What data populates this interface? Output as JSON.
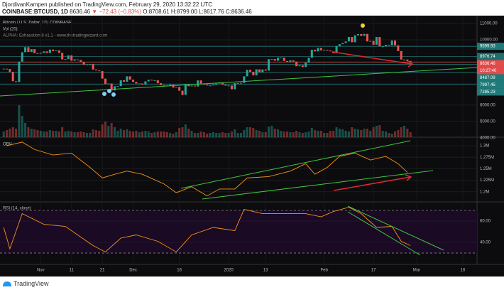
{
  "header": {
    "publisher": "DjordivanKampen published on TradingView.com, February 29, 2020 13:32:22 UTC",
    "symbol": "COINBASE:BTCUSD, 1D",
    "last": "8636.46",
    "change": "▼ −72.43 (−0.83%)",
    "ohlc": "O:8708.61 H:8799.00 L:8617.76 C:8636.46"
  },
  "chart_data": {
    "type": "candlestick",
    "title": "Bitcoin / U.S. Dollar, 1D, COINBASE",
    "indicator": "ALPHA: Exhaustion 8 v1.1 - www.thetradingwizard.com",
    "xlim": [
      -1.2,
      153.6
    ],
    "xticks": [
      {
        "value": 12,
        "label": "Nov"
      },
      {
        "value": 22,
        "label": "11"
      },
      {
        "value": 32,
        "label": "21"
      },
      {
        "value": 42,
        "label": "Dec"
      },
      {
        "value": 57,
        "label": "16"
      },
      {
        "value": 73,
        "label": "2020"
      },
      {
        "value": 85,
        "label": "13"
      },
      {
        "value": 104,
        "label": "Feb"
      },
      {
        "value": 120,
        "label": "17"
      },
      {
        "value": 134,
        "label": "Mar"
      },
      {
        "value": 149,
        "label": "16"
      }
    ],
    "closes": [
      8230,
      8210,
      8030,
      7460,
      7410,
      8660,
      9240,
      9550,
      9250,
      9430,
      9180,
      9150,
      9200,
      9290,
      9190,
      9400,
      9310,
      9350,
      9200,
      8800,
      8810,
      9040,
      8720,
      8800,
      8760,
      8640,
      8470,
      8500,
      8510,
      8180,
      8120,
      8080,
      7620,
      7280,
      7320,
      6900,
      7150,
      7160,
      7520,
      7430,
      7760,
      7560,
      7420,
      7320,
      7320,
      7250,
      7450,
      7550,
      7510,
      7520,
      7340,
      7220,
      7200,
      7190,
      7250,
      7070,
      7110,
      6880,
      6620,
      7280,
      7150,
      7190,
      7140,
      7510,
      7320,
      7250,
      7200,
      7200,
      7250,
      7320,
      7390,
      7250,
      7190,
      7200,
      6970,
      7340,
      7350,
      7360,
      7760,
      8160,
      8040,
      7820,
      8190,
      8020,
      8180,
      8110,
      8810,
      8820,
      8720,
      8900,
      8910,
      8700,
      8630,
      8740,
      8660,
      8380,
      8430,
      8330,
      8600,
      8900,
      9390,
      9290,
      9500,
      9350,
      9390,
      9340,
      9290,
      9180,
      9610,
      9730,
      9800,
      9900,
      10170,
      9850,
      10270,
      10350,
      10240,
      10360,
      9900,
      9930,
      9700,
      10170,
      9600,
      9600,
      9690,
      9660,
      9960,
      9660,
      9310,
      8790,
      8790,
      8700,
      8636.46
    ],
    "ylim": [
      4030,
      11350
    ],
    "yticks": [
      {
        "value": 11000,
        "label": "11000.00"
      },
      {
        "value": 10000,
        "label": "10000.00"
      },
      {
        "value": 6000,
        "label": "6000.00"
      },
      {
        "value": 5000,
        "label": "5000.00"
      },
      {
        "value": 4000,
        "label": "4000.00"
      }
    ],
    "price_tags": [
      {
        "value": 9599.93,
        "label": "9599.93",
        "color": "#1f7a7a"
      },
      {
        "value": 8976.74,
        "label": "8976.74",
        "color": "#1f6f6f"
      },
      {
        "value": 8636.46,
        "label": "8636.46",
        "color": "#e04c4c"
      },
      {
        "value": 8487.09,
        "label": "8487.09",
        "color": "#1f7a7a"
      },
      {
        "value": 7997.45,
        "label": "7997.45",
        "color": "#1f7a7a"
      },
      {
        "value": 7285.23,
        "label": "7285.23",
        "color": "#1f7a7a"
      }
    ],
    "countdown": "10:27:40",
    "up_color": "#26a69a",
    "down_color": "#ef5350",
    "volume": {
      "name": "Vol (20)",
      "ylim": [
        0,
        100
      ],
      "values": [
        8,
        10,
        12,
        14,
        12,
        45,
        30,
        20,
        14,
        12,
        11,
        10,
        9,
        8,
        8,
        10,
        9,
        9,
        8,
        14,
        8,
        9,
        8,
        7,
        7,
        8,
        7,
        6,
        6,
        11,
        10,
        9,
        18,
        22,
        16,
        20,
        14,
        9,
        12,
        10,
        11,
        9,
        8,
        9,
        7,
        8,
        9,
        8,
        6,
        7,
        8,
        8,
        8,
        7,
        6,
        5,
        7,
        13,
        14,
        18,
        12,
        9,
        6,
        6,
        8,
        7,
        5,
        6,
        7,
        6,
        6,
        7,
        6,
        6,
        8,
        11,
        6,
        6,
        10,
        14,
        14,
        13,
        10,
        9,
        7,
        7,
        15,
        16,
        12,
        11,
        9,
        8,
        8,
        7,
        7,
        9,
        7,
        6,
        7,
        8,
        13,
        10,
        9,
        9,
        6,
        6,
        9,
        9,
        14,
        12,
        11,
        9,
        8,
        14,
        12,
        11,
        10,
        12,
        12,
        9,
        14,
        16,
        17,
        9,
        8,
        6,
        5,
        8,
        10,
        14,
        16,
        12,
        7
      ]
    },
    "obv": {
      "name": "OBV",
      "color": "#f7931a",
      "ylim": [
        1.178,
        1.3125
      ],
      "yticks": [
        {
          "value": 1.3,
          "label": "1.3M"
        },
        {
          "value": 1.275,
          "label": "1.275M"
        },
        {
          "value": 1.25,
          "label": "1.25M"
        },
        {
          "value": 1.225,
          "label": "1.225M"
        },
        {
          "value": 1.2,
          "label": "1.2M"
        }
      ],
      "x": [
        1,
        6,
        10,
        16,
        22,
        28,
        32,
        36,
        40,
        45,
        52,
        56,
        61,
        66,
        70,
        75,
        79,
        86,
        93,
        98,
        101,
        105,
        109,
        114,
        119,
        124,
        128,
        131
      ],
      "values": [
        1.3,
        1.308,
        1.292,
        1.28,
        1.284,
        1.253,
        1.23,
        1.238,
        1.245,
        1.238,
        1.217,
        1.198,
        1.211,
        1.191,
        1.206,
        1.206,
        1.23,
        1.233,
        1.245,
        1.261,
        1.238,
        1.253,
        1.277,
        1.284,
        1.269,
        1.277,
        1.261,
        1.242
      ]
    },
    "rsi": {
      "name": "RSI (14, close)",
      "color": "#f7931a",
      "ylim": [
        19.3,
        76.7
      ],
      "bands": [
        70,
        30
      ],
      "yticks": [
        {
          "value": 60,
          "label": "60.00"
        },
        {
          "value": 40,
          "label": "40.00"
        }
      ],
      "x": [
        0,
        2,
        6,
        13,
        20,
        24,
        29,
        33,
        38,
        43,
        50,
        56,
        61,
        68,
        75,
        78,
        84,
        91,
        98,
        103,
        107,
        112,
        116,
        121,
        126,
        129,
        132
      ],
      "values": [
        54,
        34,
        67,
        57,
        55,
        47,
        37,
        31,
        44,
        47,
        41,
        31,
        47,
        54,
        51,
        71,
        67,
        67,
        67,
        64,
        69,
        73,
        67,
        54,
        55,
        41,
        37
      ]
    }
  },
  "footer": {
    "brand": "TradingView"
  }
}
